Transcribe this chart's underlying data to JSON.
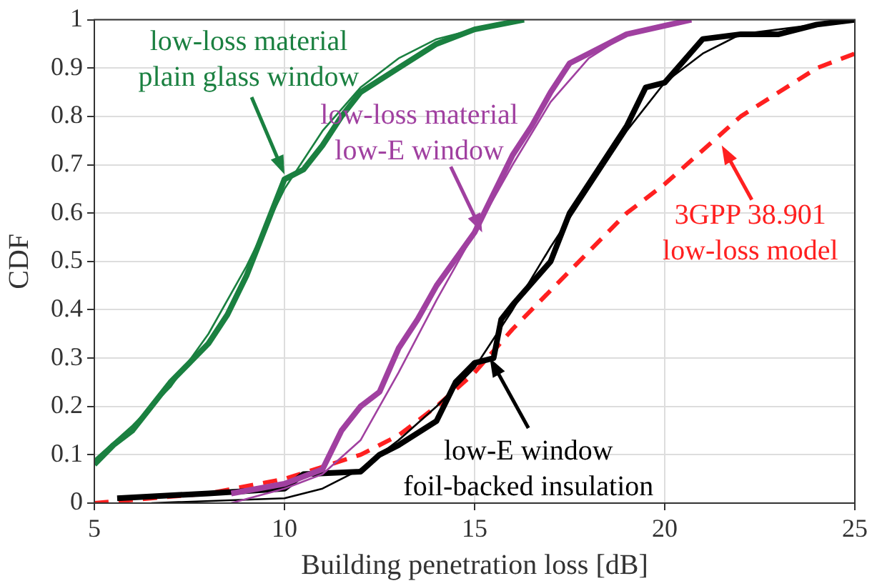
{
  "chart_data": {
    "type": "line",
    "xlabel": "Building penetration loss [dB]",
    "ylabel": "CDF",
    "xlim": [
      5,
      25
    ],
    "ylim": [
      0,
      1
    ],
    "xticks": [
      5,
      10,
      15,
      20,
      25
    ],
    "yticks": [
      0,
      0.1,
      0.2,
      0.3,
      0.4,
      0.5,
      0.6,
      0.7,
      0.8,
      0.9,
      1
    ],
    "grid": true,
    "line_style": "solid",
    "marker": "none",
    "series": [
      {
        "color": "#1a8040",
        "x": [
          5,
          5.5,
          6,
          6.5,
          7,
          7.5,
          8,
          8.5,
          9,
          9.5,
          10,
          10.5,
          11,
          11.5,
          12,
          13,
          14,
          15,
          16.3
        ],
        "values": [
          0.08,
          0.12,
          0.15,
          0.2,
          0.25,
          0.29,
          0.33,
          0.39,
          0.47,
          0.57,
          0.67,
          0.69,
          0.74,
          0.8,
          0.85,
          0.9,
          0.95,
          0.98,
          1
        ]
      },
      {
        "color": "#1a8040",
        "x": [
          5,
          6,
          7,
          8,
          9,
          10,
          11,
          12,
          13,
          14,
          15,
          16.3
        ],
        "values": [
          0.09,
          0.16,
          0.24,
          0.35,
          0.49,
          0.65,
          0.77,
          0.86,
          0.92,
          0.96,
          0.98,
          1
        ]
      },
      {
        "color": "#a040a0",
        "x": [
          8.6,
          10,
          11,
          11.5,
          12,
          12.5,
          13,
          13.5,
          14,
          15,
          15.5,
          16,
          16.5,
          17,
          17.5,
          18,
          19,
          20.7
        ],
        "values": [
          0.02,
          0.04,
          0.07,
          0.15,
          0.2,
          0.23,
          0.32,
          0.38,
          0.45,
          0.56,
          0.64,
          0.72,
          0.78,
          0.85,
          0.91,
          0.93,
          0.97,
          1
        ]
      },
      {
        "color": "#a040a0",
        "x": [
          8.6,
          10,
          11,
          12,
          13,
          14,
          15,
          16,
          17,
          18,
          19,
          20.7
        ],
        "values": [
          0,
          0.03,
          0.06,
          0.13,
          0.27,
          0.42,
          0.56,
          0.7,
          0.83,
          0.92,
          0.97,
          1
        ]
      },
      {
        "color": "#000000",
        "x": [
          5.6,
          8,
          10,
          10.5,
          12,
          12.5,
          13,
          14,
          14.5,
          15,
          15.5,
          15.7,
          16,
          17,
          17.5,
          18,
          19,
          19.5,
          20,
          21,
          22,
          23,
          24,
          25
        ],
        "values": [
          0.01,
          0.02,
          0.03,
          0.06,
          0.065,
          0.1,
          0.12,
          0.17,
          0.25,
          0.29,
          0.3,
          0.38,
          0.41,
          0.5,
          0.6,
          0.66,
          0.78,
          0.86,
          0.87,
          0.96,
          0.97,
          0.97,
          0.99,
          1
        ]
      },
      {
        "color": "#000000",
        "x": [
          6.5,
          10,
          11,
          12,
          13,
          14,
          15,
          16,
          17,
          18,
          19,
          20,
          21,
          22,
          25
        ],
        "values": [
          0,
          0.01,
          0.03,
          0.07,
          0.13,
          0.2,
          0.28,
          0.4,
          0.53,
          0.65,
          0.77,
          0.87,
          0.93,
          0.97,
          1
        ]
      },
      {
        "color": "#ff2020",
        "line_style": "dashed",
        "x": [
          5,
          8,
          10,
          12,
          13,
          14,
          15,
          16,
          17,
          18,
          19,
          20,
          21,
          22,
          23,
          24,
          25
        ],
        "values": [
          0,
          0.02,
          0.05,
          0.1,
          0.14,
          0.2,
          0.27,
          0.36,
          0.44,
          0.52,
          0.6,
          0.66,
          0.73,
          0.8,
          0.85,
          0.9,
          0.93
        ]
      }
    ],
    "annotations": [
      {
        "text": "low-loss material\nplain glass window",
        "x": 10,
        "y": 0.68
      },
      {
        "text": "low-loss material\nlow-E window",
        "x": 15.2,
        "y": 0.56
      },
      {
        "text": "3GPP 38.901\nlow-loss model",
        "x": 21.5,
        "y": 0.74
      },
      {
        "text": "low-E window\nfoil-backed insulation",
        "x": 15.4,
        "y": 0.3
      }
    ]
  }
}
